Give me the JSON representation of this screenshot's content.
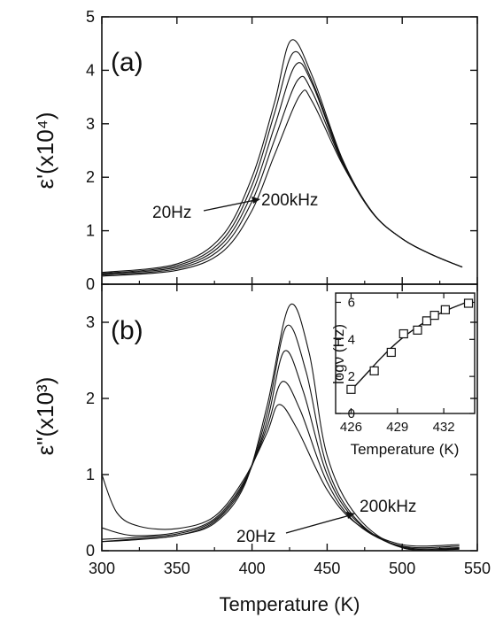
{
  "chart_data": [
    {
      "panel": "(a)",
      "type": "line",
      "ylabel": "ε'(x10⁴)",
      "xlabel": "",
      "xlim": [
        300,
        550
      ],
      "ylim": [
        0,
        5
      ],
      "xticks": [
        300,
        350,
        400,
        450,
        500,
        550
      ],
      "yticks": [
        0,
        1,
        2,
        3,
        4,
        5
      ],
      "annotation": {
        "from": "20Hz",
        "to": "200kHz"
      },
      "series": [
        {
          "peak_x": 426,
          "peak_y": 4.56,
          "x": [
            300,
            350,
            380,
            400,
            415,
            426,
            440,
            460,
            480,
            500,
            520,
            540
          ],
          "y": [
            0.22,
            0.38,
            0.9,
            2.0,
            3.4,
            4.56,
            3.9,
            2.35,
            1.35,
            0.85,
            0.55,
            0.32
          ]
        },
        {
          "peak_x": 427.5,
          "peak_y": 4.33,
          "x": [
            300,
            350,
            380,
            400,
            415,
            427.5,
            440,
            460,
            480,
            500,
            520,
            540
          ],
          "y": [
            0.2,
            0.35,
            0.82,
            1.85,
            3.2,
            4.33,
            3.8,
            2.33,
            1.35,
            0.85,
            0.55,
            0.32
          ]
        },
        {
          "peak_x": 429,
          "peak_y": 4.1,
          "x": [
            300,
            350,
            380,
            400,
            415,
            429,
            440,
            460,
            480,
            500,
            520,
            540
          ],
          "y": [
            0.19,
            0.32,
            0.75,
            1.7,
            2.95,
            4.1,
            3.75,
            2.3,
            1.34,
            0.85,
            0.55,
            0.32
          ]
        },
        {
          "peak_x": 430.5,
          "peak_y": 3.82,
          "x": [
            300,
            350,
            380,
            400,
            415,
            430.5,
            440,
            460,
            480,
            500,
            520,
            540
          ],
          "y": [
            0.17,
            0.29,
            0.68,
            1.55,
            2.7,
            3.82,
            3.6,
            2.28,
            1.34,
            0.85,
            0.55,
            0.32
          ]
        },
        {
          "peak_x": 432,
          "peak_y": 3.54,
          "x": [
            300,
            350,
            380,
            400,
            415,
            432,
            440,
            460,
            480,
            500,
            520,
            540
          ],
          "y": [
            0.15,
            0.26,
            0.6,
            1.38,
            2.42,
            3.54,
            3.42,
            2.25,
            1.34,
            0.85,
            0.55,
            0.32
          ]
        }
      ]
    },
    {
      "panel": "(b)",
      "type": "line",
      "ylabel": "ε\"(x10³)",
      "xlabel": "Temperature (K)",
      "xlim": [
        300,
        550
      ],
      "ylim": [
        0,
        3.5
      ],
      "xticks": [
        300,
        350,
        400,
        450,
        500,
        550
      ],
      "yticks": [
        0,
        1,
        2,
        3
      ],
      "annotation": {
        "from": "20Hz",
        "to": "200kHz"
      },
      "series": [
        {
          "x": [
            300,
            310,
            325,
            350,
            375,
            395,
            410,
            418,
            430,
            450,
            470,
            500,
            538
          ],
          "y": [
            1.0,
            0.5,
            0.32,
            0.29,
            0.45,
            0.95,
            1.55,
            1.92,
            1.6,
            0.8,
            0.35,
            0.08,
            0.08
          ]
        },
        {
          "x": [
            300,
            320,
            350,
            375,
            395,
            410,
            420,
            432,
            450,
            470,
            500,
            538
          ],
          "y": [
            0.3,
            0.2,
            0.24,
            0.42,
            0.92,
            1.62,
            2.22,
            1.85,
            0.9,
            0.35,
            0.06,
            0.06
          ]
        },
        {
          "x": [
            300,
            320,
            350,
            375,
            395,
            410,
            421.5,
            434,
            450,
            470,
            500,
            538
          ],
          "y": [
            0.15,
            0.17,
            0.22,
            0.4,
            0.9,
            1.7,
            2.62,
            2.1,
            1.0,
            0.38,
            0.05,
            0.04
          ]
        },
        {
          "x": [
            300,
            320,
            350,
            375,
            395,
            410,
            423,
            436,
            450,
            470,
            500,
            538
          ],
          "y": [
            0.12,
            0.15,
            0.2,
            0.38,
            0.88,
            1.8,
            2.95,
            2.35,
            1.1,
            0.4,
            0.04,
            0.03
          ]
        },
        {
          "x": [
            300,
            320,
            350,
            375,
            395,
            410,
            425,
            438,
            450,
            470,
            500,
            538
          ],
          "y": [
            0.12,
            0.14,
            0.2,
            0.36,
            0.86,
            1.9,
            3.22,
            2.6,
            1.25,
            0.45,
            0.04,
            0.02
          ]
        }
      ]
    },
    {
      "panel": "inset",
      "type": "scatter",
      "ylabel": "logν (Hz)",
      "xlabel": "Temperature (K)",
      "xlim": [
        425,
        434
      ],
      "ylim": [
        0,
        6.5
      ],
      "xticks": [
        426,
        429,
        432
      ],
      "yticks": [
        0,
        2,
        4,
        6
      ],
      "points": {
        "x": [
          426.0,
          427.5,
          428.6,
          429.4,
          430.3,
          430.9,
          431.4,
          432.1,
          433.6
        ],
        "y": [
          1.3,
          2.3,
          3.3,
          4.3,
          4.5,
          5.0,
          5.3,
          5.6,
          5.95
        ]
      },
      "fit": {
        "x": [
          426.0,
          427.0,
          428.0,
          429.0,
          430.0,
          431.0,
          432.0,
          433.0,
          433.6
        ],
        "y": [
          1.25,
          2.15,
          3.05,
          3.85,
          4.5,
          5.05,
          5.5,
          5.85,
          6.05
        ]
      }
    }
  ]
}
